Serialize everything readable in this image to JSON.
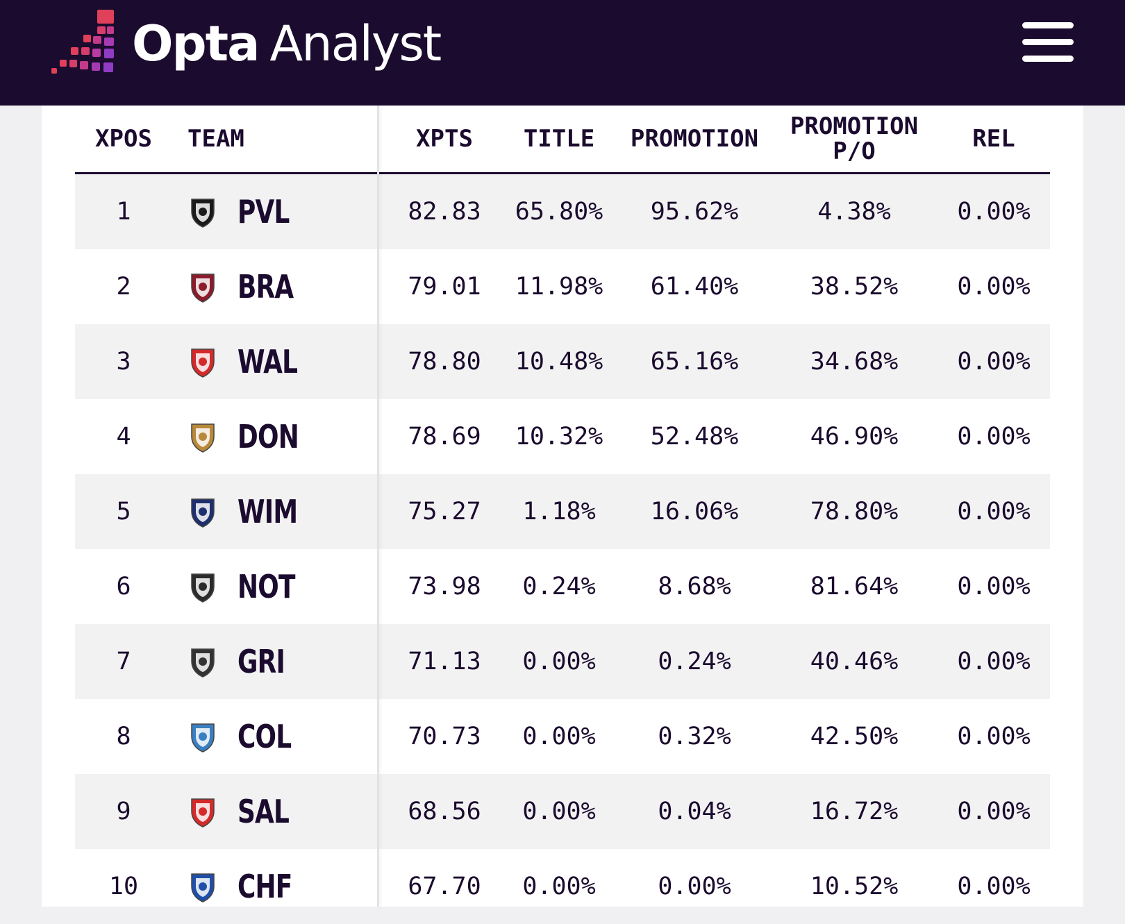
{
  "header": {
    "brand_bold": "Opta",
    "brand_light": "Analyst",
    "logo_icon": "opta-stairs-logo-icon",
    "menu_icon": "hamburger-menu-icon",
    "background": "#1b0b2e"
  },
  "table": {
    "columns": {
      "xpos": "XPOS",
      "team": "TEAM",
      "xpts": "XPTS",
      "title": "TITLE",
      "promotion": "PROMOTION",
      "promotion_po": "PROMOTION P/O",
      "rel": "REL"
    },
    "rows": [
      {
        "xpos": "1",
        "team": "PVL",
        "xpts": "82.83",
        "title": "65.80%",
        "promotion": "95.62%",
        "promotion_po": "4.38%",
        "rel": "0.00%",
        "crest_color": "#1a1a1a"
      },
      {
        "xpos": "2",
        "team": "BRA",
        "xpts": "79.01",
        "title": "11.98%",
        "promotion": "61.40%",
        "promotion_po": "38.52%",
        "rel": "0.00%",
        "crest_color": "#8a1c2b"
      },
      {
        "xpos": "3",
        "team": "WAL",
        "xpts": "78.80",
        "title": "10.48%",
        "promotion": "65.16%",
        "promotion_po": "34.68%",
        "rel": "0.00%",
        "crest_color": "#d42a2a"
      },
      {
        "xpos": "4",
        "team": "DON",
        "xpts": "78.69",
        "title": "10.32%",
        "promotion": "52.48%",
        "promotion_po": "46.90%",
        "rel": "0.00%",
        "crest_color": "#b8893a"
      },
      {
        "xpos": "5",
        "team": "WIM",
        "xpts": "75.27",
        "title": "1.18%",
        "promotion": "16.06%",
        "promotion_po": "78.80%",
        "rel": "0.00%",
        "crest_color": "#1d2f6f"
      },
      {
        "xpos": "6",
        "team": "NOT",
        "xpts": "73.98",
        "title": "0.24%",
        "promotion": "8.68%",
        "promotion_po": "81.64%",
        "rel": "0.00%",
        "crest_color": "#2b2b2b"
      },
      {
        "xpos": "7",
        "team": "GRI",
        "xpts": "71.13",
        "title": "0.00%",
        "promotion": "0.24%",
        "promotion_po": "40.46%",
        "rel": "0.00%",
        "crest_color": "#333333"
      },
      {
        "xpos": "8",
        "team": "COL",
        "xpts": "70.73",
        "title": "0.00%",
        "promotion": "0.32%",
        "promotion_po": "42.50%",
        "rel": "0.00%",
        "crest_color": "#3a7fc1"
      },
      {
        "xpos": "9",
        "team": "SAL",
        "xpts": "68.56",
        "title": "0.00%",
        "promotion": "0.04%",
        "promotion_po": "16.72%",
        "rel": "0.00%",
        "crest_color": "#d42a2a"
      },
      {
        "xpos": "10",
        "team": "CHF",
        "xpts": "67.70",
        "title": "0.00%",
        "promotion": "0.00%",
        "promotion_po": "10.52%",
        "rel": "0.00%",
        "crest_color": "#1f4fa8"
      }
    ]
  }
}
